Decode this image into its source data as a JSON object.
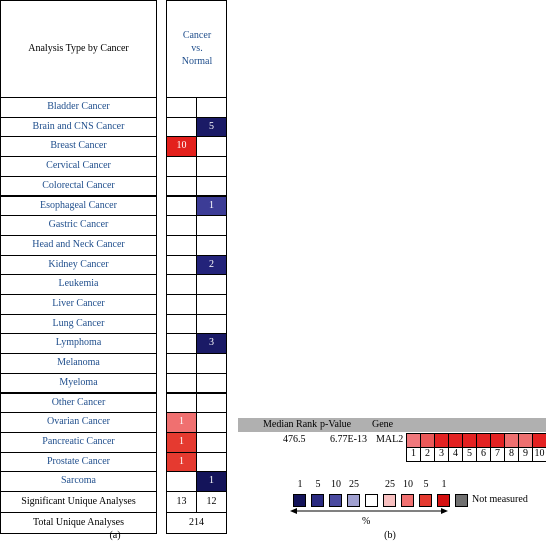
{
  "panel_a": {
    "label": "(a)",
    "header": {
      "row_title": "Analysis Type by Cancer",
      "column_title": "Cancer vs. Normal"
    },
    "rows": [
      {
        "name": "Bladder Cancer",
        "cells": [
          null,
          null
        ]
      },
      {
        "name": "Brain and CNS Cancer",
        "cells": [
          null,
          {
            "value": 5,
            "color": "#1a1a66"
          }
        ]
      },
      {
        "name": "Breast Cancer",
        "cells": [
          {
            "value": 10,
            "color": "#e3201c"
          },
          null
        ]
      },
      {
        "name": "Cervical Cancer",
        "cells": [
          null,
          null
        ]
      },
      {
        "name": "Colorectal Cancer",
        "cells": [
          null,
          null
        ]
      },
      {
        "name": "Esophageal Cancer",
        "cells": [
          null,
          {
            "value": 1,
            "color": "#3c3c96"
          }
        ]
      },
      {
        "name": "Gastric Cancer",
        "cells": [
          null,
          null
        ]
      },
      {
        "name": "Head and Neck Cancer",
        "cells": [
          null,
          null
        ]
      },
      {
        "name": "Kidney Cancer",
        "cells": [
          null,
          {
            "value": 2,
            "color": "#23237a"
          }
        ]
      },
      {
        "name": "Leukemia",
        "cells": [
          null,
          null
        ]
      },
      {
        "name": "Liver Cancer",
        "cells": [
          null,
          null
        ]
      },
      {
        "name": "Lung Cancer",
        "cells": [
          null,
          null
        ]
      },
      {
        "name": "Lymphoma",
        "cells": [
          null,
          {
            "value": 3,
            "color": "#1a1a66"
          }
        ]
      },
      {
        "name": "Melanoma",
        "cells": [
          null,
          null
        ]
      },
      {
        "name": "Myeloma",
        "cells": [
          null,
          null
        ]
      },
      {
        "name": "Other Cancer",
        "cells": [
          null,
          null
        ]
      },
      {
        "name": "Ovarian Cancer",
        "cells": [
          {
            "value": 1,
            "color": "#f07070"
          },
          null
        ]
      },
      {
        "name": "Pancreatic Cancer",
        "cells": [
          {
            "value": 1,
            "color": "#e53a30"
          },
          null
        ]
      },
      {
        "name": "Prostate Cancer",
        "cells": [
          {
            "value": 1,
            "color": "#e53a30"
          },
          null
        ]
      },
      {
        "name": "Sarcoma",
        "cells": [
          null,
          {
            "value": 1,
            "color": "#14145a"
          }
        ]
      }
    ],
    "significant": {
      "label": "Significant Unique Analyses",
      "values": [
        13,
        12
      ]
    },
    "total": {
      "label": "Total Unique Analyses",
      "value": 214
    }
  },
  "panel_b": {
    "label": "(b)",
    "headers": [
      "Median Rank",
      "p-Value",
      "Gene"
    ],
    "row": [
      476.5,
      "6.77E-13",
      "MAL2"
    ],
    "cells": [
      {
        "index": 1,
        "color": "#f0787c"
      },
      {
        "index": 2,
        "color": "#ea5858"
      },
      {
        "index": 3,
        "color": "#e32222"
      },
      {
        "index": 4,
        "color": "#e32222"
      },
      {
        "index": 5,
        "color": "#e32222"
      },
      {
        "index": 6,
        "color": "#e32222"
      },
      {
        "index": 7,
        "color": "#e32222"
      },
      {
        "index": 8,
        "color": "#ee7070"
      },
      {
        "index": 9,
        "color": "#ee7070"
      },
      {
        "index": 10,
        "color": "#e32222"
      }
    ],
    "legend": {
      "low_labels": [
        1,
        5,
        10,
        25
      ],
      "high_labels": [
        25,
        10,
        5,
        1
      ],
      "colors": [
        "#14145a",
        "#2a2a80",
        "#4a4aa0",
        "#a0a0d0",
        "#ffffff",
        "#f8c0c0",
        "#f07070",
        "#e53a30",
        "#d41010"
      ],
      "unit": "%",
      "not_measured": {
        "label": "Not measured",
        "color": "#707070"
      }
    }
  }
}
